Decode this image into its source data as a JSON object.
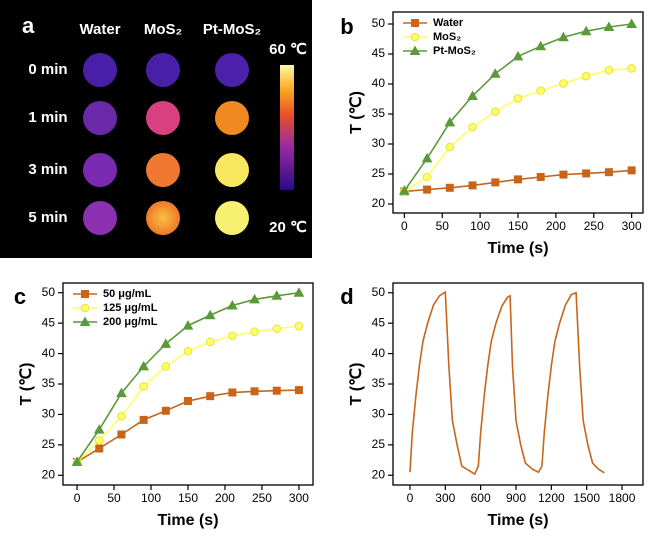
{
  "thermal_images": {
    "label": "a",
    "columns": [
      "Water",
      "MoS₂",
      "Pt-MoS₂"
    ],
    "rows": [
      "0 min",
      "1 min",
      "3 min",
      "5 min"
    ],
    "scale_max": "60 ℃",
    "scale_min": "20 ℃"
  },
  "chart_data": [
    {
      "type": "line",
      "panel": "b",
      "xlabel": "Time (s)",
      "ylabel": "T (℃)",
      "x": [
        0,
        30,
        60,
        90,
        120,
        150,
        180,
        210,
        240,
        270,
        300
      ],
      "xlim": [
        -15,
        315
      ],
      "xticks": [
        0,
        50,
        100,
        150,
        200,
        250,
        300
      ],
      "ylim": [
        18.5,
        52
      ],
      "yticks": [
        20,
        25,
        30,
        35,
        40,
        45,
        50
      ],
      "series": [
        {
          "name": "Water",
          "color": "#c8651b",
          "marker": "square",
          "values": [
            22.1,
            22.4,
            22.7,
            23.1,
            23.6,
            24.1,
            24.5,
            24.9,
            25.1,
            25.3,
            25.6
          ]
        },
        {
          "name": "MoS₂",
          "color": "#ffff66",
          "marker": "circle",
          "values": [
            22.1,
            24.5,
            29.5,
            32.8,
            35.4,
            37.6,
            38.9,
            40.1,
            41.3,
            42.3,
            42.6
          ]
        },
        {
          "name": "Pt-MoS₂",
          "color": "#5a9a3a",
          "marker": "triangle",
          "values": [
            22.2,
            27.6,
            33.6,
            38.0,
            41.7,
            44.6,
            46.3,
            47.8,
            48.8,
            49.5,
            50.0
          ]
        }
      ]
    },
    {
      "type": "line",
      "panel": "c",
      "xlabel": "Time (s)",
      "ylabel": "T (℃)",
      "x": [
        0,
        30,
        60,
        90,
        120,
        150,
        180,
        210,
        240,
        270,
        300
      ],
      "xlim": [
        -19,
        319
      ],
      "xticks": [
        0,
        50,
        100,
        150,
        200,
        250,
        300
      ],
      "ylim": [
        18.4,
        51.6
      ],
      "yticks": [
        20,
        25,
        30,
        35,
        40,
        45,
        50
      ],
      "series": [
        {
          "name": "50 μg/mL",
          "color": "#c8651b",
          "marker": "square",
          "values": [
            22.2,
            24.4,
            26.7,
            29.1,
            30.6,
            32.2,
            33.0,
            33.6,
            33.8,
            33.9,
            34.0
          ]
        },
        {
          "name": "125 μg/mL",
          "color": "#ffff66",
          "marker": "circle",
          "values": [
            22.2,
            25.7,
            29.7,
            34.6,
            37.9,
            40.4,
            41.9,
            42.9,
            43.6,
            44.1,
            44.5
          ]
        },
        {
          "name": "200 μg/mL",
          "color": "#5a9a3a",
          "marker": "triangle",
          "values": [
            22.2,
            27.5,
            33.5,
            37.9,
            41.6,
            44.6,
            46.3,
            47.9,
            48.9,
            49.5,
            50.0
          ]
        }
      ]
    },
    {
      "type": "line",
      "panel": "d",
      "xlabel": "Time (s)",
      "ylabel": "T (℃)",
      "x": [
        0,
        20,
        50,
        80,
        110,
        150,
        200,
        250,
        300,
        330,
        360,
        400,
        440,
        500,
        550,
        580,
        600,
        630,
        660,
        690,
        730,
        780,
        830,
        850,
        870,
        900,
        940,
        980,
        1040,
        1090,
        1120,
        1140,
        1170,
        1200,
        1230,
        1270,
        1320,
        1370,
        1410,
        1440,
        1470,
        1510,
        1550,
        1600,
        1650
      ],
      "xlim": [
        -144,
        1978
      ],
      "xticks": [
        0,
        300,
        600,
        900,
        1200,
        1500,
        1800
      ],
      "ylim": [
        18.4,
        51.6
      ],
      "yticks": [
        20,
        25,
        30,
        35,
        40,
        45,
        50
      ],
      "series": [
        {
          "color": "#c8651b",
          "values": [
            20.5,
            27,
            33,
            38,
            42,
            45,
            48,
            49.5,
            50.1,
            38,
            29,
            25,
            21.5,
            20.8,
            20.2,
            21.5,
            27,
            33,
            38,
            42,
            45,
            47.8,
            49.3,
            49.5,
            38,
            29,
            25,
            22,
            21,
            20.5,
            21.5,
            27,
            33,
            38,
            42,
            45,
            48,
            49.7,
            50,
            38,
            29,
            25,
            22,
            21,
            20.4
          ]
        }
      ]
    }
  ]
}
